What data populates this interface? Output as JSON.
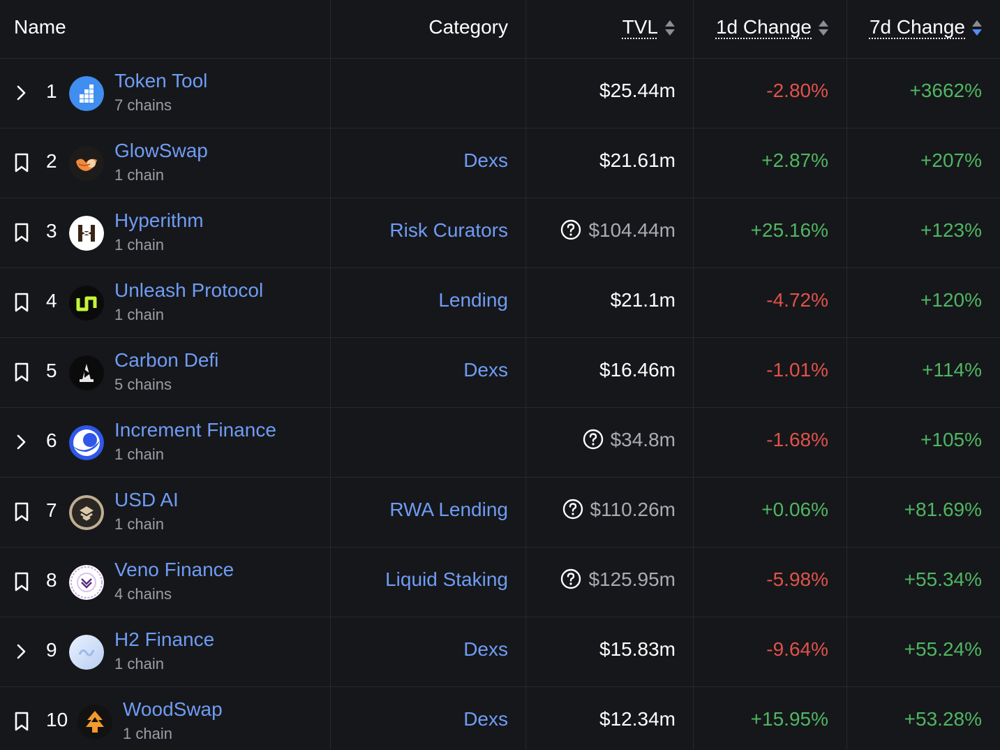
{
  "header": {
    "name": "Name",
    "category": "Category",
    "tvl": "TVL",
    "change_1d": "1d Change",
    "change_7d": "7d Change"
  },
  "rows": [
    {
      "rank": "1",
      "name": "Token Tool",
      "chains": "7 chains",
      "category": "",
      "tvl": "$25.44m",
      "change_1d": "-2.80%",
      "change_7d": "+3662%",
      "lead_icon": "chevron-right-icon",
      "logo": "token-tool-logo"
    },
    {
      "rank": "2",
      "name": "GlowSwap",
      "chains": "1 chain",
      "category": "Dexs",
      "tvl": "$21.61m",
      "change_1d": "+2.87%",
      "change_7d": "+207%",
      "lead_icon": "bookmark-icon",
      "logo": "glowswap-logo"
    },
    {
      "rank": "3",
      "name": "Hyperithm",
      "chains": "1 chain",
      "category": "Risk Curators",
      "tvl": "$104.44m",
      "change_1d": "+25.16%",
      "change_7d": "+123%",
      "lead_icon": "bookmark-icon",
      "logo": "hyperithm-logo"
    },
    {
      "rank": "4",
      "name": "Unleash Protocol",
      "chains": "1 chain",
      "category": "Lending",
      "tvl": "$21.1m",
      "change_1d": "-4.72%",
      "change_7d": "+120%",
      "lead_icon": "bookmark-icon",
      "logo": "unleash-logo"
    },
    {
      "rank": "5",
      "name": "Carbon Defi",
      "chains": "5 chains",
      "category": "Dexs",
      "tvl": "$16.46m",
      "change_1d": "-1.01%",
      "change_7d": "+114%",
      "lead_icon": "bookmark-icon",
      "logo": "carbon-defi-logo"
    },
    {
      "rank": "6",
      "name": "Increment Finance",
      "chains": "1 chain",
      "category": "",
      "tvl": "$34.8m",
      "change_1d": "-1.68%",
      "change_7d": "+105%",
      "lead_icon": "chevron-right-icon",
      "logo": "increment-logo"
    },
    {
      "rank": "7",
      "name": "USD AI",
      "chains": "1 chain",
      "category": "RWA Lending",
      "tvl": "$110.26m",
      "change_1d": "+0.06%",
      "change_7d": "+81.69%",
      "lead_icon": "bookmark-icon",
      "logo": "usd-ai-logo"
    },
    {
      "rank": "8",
      "name": "Veno Finance",
      "chains": "4 chains",
      "category": "Liquid Staking",
      "tvl": "$125.95m",
      "change_1d": "-5.98%",
      "change_7d": "+55.34%",
      "lead_icon": "bookmark-icon",
      "logo": "veno-logo"
    },
    {
      "rank": "9",
      "name": "H2 Finance",
      "chains": "1 chain",
      "category": "Dexs",
      "tvl": "$15.83m",
      "change_1d": "-9.64%",
      "change_7d": "+55.24%",
      "lead_icon": "chevron-right-icon",
      "logo": "h2-finance-logo"
    },
    {
      "rank": "10",
      "name": "WoodSwap",
      "chains": "1 chain",
      "category": "Dexs",
      "tvl": "$12.34m",
      "change_1d": "+15.95%",
      "change_7d": "+53.28%",
      "lead_icon": "bookmark-icon",
      "logo": "woodswap-logo"
    }
  ],
  "colors": {
    "background": "#16171a",
    "link": "#6f9cf5",
    "negative": "#e0524a",
    "positive": "#4fb663",
    "sort_active": "#4f8ef7"
  }
}
